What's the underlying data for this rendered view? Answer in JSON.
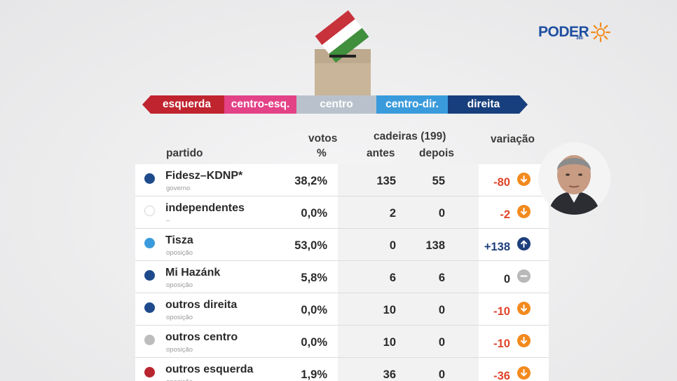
{
  "logo": {
    "text": "PODER",
    "sub": "360"
  },
  "spectrum": {
    "left": "esquerda",
    "center_left": "centro-esq.",
    "center": "centro",
    "center_right": "centro-dir.",
    "right": "direita"
  },
  "headers": {
    "party": "partido",
    "votes": "votos",
    "votes_unit": "%",
    "seats": "cadeiras (199)",
    "before": "antes",
    "after": "depois",
    "change": "variação"
  },
  "rows": [
    {
      "name": "Fidesz–KDNP*",
      "sub": "governo",
      "dot": "#1e4a8c",
      "votes": "38,2%",
      "before": "135",
      "after": "55",
      "change": "-80",
      "trend": "down"
    },
    {
      "name": "independentes",
      "sub": "–",
      "dot": "empty",
      "votes": "0,0%",
      "before": "2",
      "after": "0",
      "change": "-2",
      "trend": "down"
    },
    {
      "name": "Tisza",
      "sub": "oposição",
      "dot": "#3a9bdc",
      "votes": "53,0%",
      "before": "0",
      "after": "138",
      "change": "+138",
      "trend": "up"
    },
    {
      "name": "Mi Hazánk",
      "sub": "oposição",
      "dot": "#1e4a8c",
      "votes": "5,8%",
      "before": "6",
      "after": "6",
      "change": "0",
      "trend": "flat"
    },
    {
      "name": "outros direita",
      "sub": "oposição",
      "dot": "#1e4a8c",
      "votes": "0,0%",
      "before": "10",
      "after": "0",
      "change": "-10",
      "trend": "down"
    },
    {
      "name": "outros centro",
      "sub": "oposição",
      "dot": "#bdbdbd",
      "votes": "0,0%",
      "before": "10",
      "after": "0",
      "change": "-10",
      "trend": "down"
    },
    {
      "name": "outros esquerda",
      "sub": "oposição",
      "dot": "#b8252e",
      "votes": "1,9%",
      "before": "36",
      "after": "0",
      "change": "-36",
      "trend": "down"
    }
  ]
}
